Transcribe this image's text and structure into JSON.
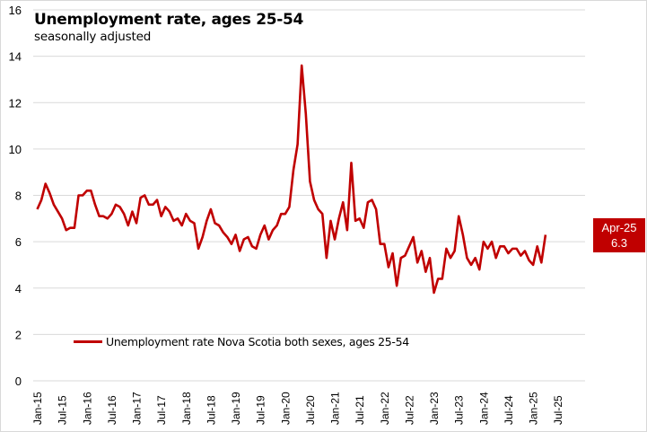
{
  "chart_data": {
    "type": "line",
    "title": "Unemployment rate, ages 25-54",
    "subtitle": "seasonally adjusted",
    "xlabel": "",
    "ylabel": "",
    "ylim": [
      0,
      16
    ],
    "yticks": [
      "0",
      "2",
      "4",
      "6",
      "8",
      "10",
      "12",
      "14",
      "16"
    ],
    "xticks": [
      "Jan-15",
      "Jul-15",
      "Jan-16",
      "Jul-16",
      "Jan-17",
      "Jul-17",
      "Jan-18",
      "Jul-18",
      "Jan-19",
      "Jul-19",
      "Jan-20",
      "Jul-20",
      "Jan-21",
      "Jul-21",
      "Jan-22",
      "Jul-22",
      "Jan-23",
      "Jul-23",
      "Jan-24",
      "Jul-24",
      "Jan-25",
      "Jul-25"
    ],
    "grid": true,
    "legend_position": "bottom-left",
    "x_start": "Jan-15",
    "x_end": "Apr-25",
    "series": [
      {
        "name": "Unemployment rate Nova Scotia both sexes, ages 25-54",
        "color": "#c00000",
        "values": [
          7.4,
          7.8,
          8.5,
          8.1,
          7.6,
          7.3,
          7.0,
          6.5,
          6.6,
          6.6,
          8.0,
          8.0,
          8.2,
          8.2,
          7.6,
          7.1,
          7.1,
          7.0,
          7.2,
          7.6,
          7.5,
          7.2,
          6.7,
          7.3,
          6.8,
          7.9,
          8.0,
          7.6,
          7.6,
          7.8,
          7.1,
          7.5,
          7.3,
          6.9,
          7.0,
          6.7,
          7.2,
          6.9,
          6.8,
          5.7,
          6.2,
          6.9,
          7.4,
          6.8,
          6.7,
          6.4,
          6.2,
          5.9,
          6.3,
          5.6,
          6.1,
          6.2,
          5.8,
          5.7,
          6.3,
          6.7,
          6.1,
          6.5,
          6.7,
          7.2,
          7.2,
          7.5,
          9.1,
          10.2,
          13.6,
          11.5,
          8.6,
          7.8,
          7.4,
          7.2,
          5.3,
          6.9,
          6.1,
          7.0,
          7.7,
          6.5,
          9.4,
          6.9,
          7.0,
          6.6,
          7.7,
          7.8,
          7.4,
          5.9,
          5.9,
          4.9,
          5.5,
          4.1,
          5.3,
          5.4,
          5.8,
          6.2,
          5.1,
          5.6,
          4.7,
          5.3,
          3.8,
          4.4,
          4.4,
          5.7,
          5.3,
          5.6,
          7.1,
          6.3,
          5.3,
          5.0,
          5.3,
          4.8,
          6.0,
          5.7,
          6.0,
          5.3,
          5.8,
          5.8,
          5.5,
          5.7,
          5.7,
          5.4,
          5.6,
          5.2,
          5.0,
          5.8,
          5.1,
          6.3
        ]
      }
    ],
    "annotation": {
      "label": "Apr-25",
      "value": "6.3"
    }
  }
}
